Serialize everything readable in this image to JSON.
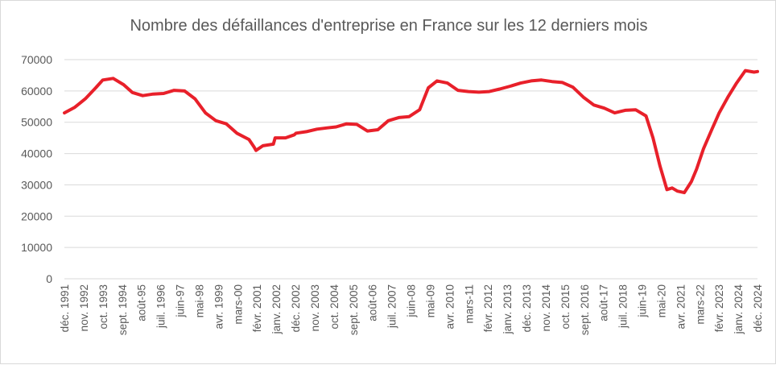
{
  "chart_data": {
    "type": "line",
    "title": "Nombre des défaillances d'entreprise en France  sur les 12 derniers mois",
    "xlabel": "",
    "ylabel": "",
    "ylim": [
      0,
      70000
    ],
    "yticks": [
      0,
      10000,
      20000,
      30000,
      40000,
      50000,
      60000,
      70000
    ],
    "ytick_labels": [
      "0",
      "10000",
      "20000",
      "30000",
      "40000",
      "50000",
      "60000",
      "70000"
    ],
    "grid": "horizontal",
    "line_color": "#e8202a",
    "x_tick_labels": [
      "déc. 1991",
      "nov. 1992",
      "oct. 1993",
      "sept. 1994",
      "août-95",
      "juil. 1996",
      "juin-97",
      "mai-98",
      "avr. 1999",
      "mars-00",
      "févr. 2001",
      "janv. 2002",
      "déc. 2002",
      "nov. 2003",
      "oct. 2004",
      "sept. 2005",
      "août-06",
      "juil. 2007",
      "juin-08",
      "mai-09",
      "avr. 2010",
      "mars-11",
      "févr. 2012",
      "janv. 2013",
      "déc. 2013",
      "nov. 2014",
      "oct. 2015",
      "sept. 2016",
      "août-17",
      "juil. 2018",
      "juin-19",
      "mai-20",
      "avr. 2021",
      "mars-22",
      "févr. 2023",
      "janv. 2024",
      "déc. 2024"
    ],
    "series": [
      {
        "x": [
          "1991-12",
          "1992-06",
          "1992-12",
          "1993-06",
          "1993-10",
          "1994-04",
          "1994-10",
          "1995-03",
          "1995-09",
          "1996-03",
          "1996-09",
          "1997-03",
          "1997-09",
          "1998-03",
          "1998-09",
          "1999-03",
          "1999-09",
          "2000-03",
          "2000-10",
          "2001-01",
          "2001-02",
          "2001-06",
          "2001-12",
          "2002-01",
          "2002-07",
          "2002-12",
          "2003-01",
          "2003-07",
          "2004-01",
          "2004-07",
          "2004-12",
          "2005-06",
          "2005-12",
          "2006-06",
          "2006-12",
          "2007-06",
          "2007-12",
          "2008-06",
          "2008-12",
          "2009-05",
          "2009-10",
          "2010-04",
          "2010-10",
          "2011-04",
          "2011-10",
          "2012-04",
          "2012-10",
          "2013-04",
          "2013-10",
          "2014-04",
          "2014-10",
          "2015-04",
          "2015-10",
          "2016-04",
          "2016-10",
          "2017-04",
          "2017-10",
          "2018-04",
          "2018-10",
          "2019-04",
          "2019-10",
          "2020-02",
          "2020-06",
          "2020-10",
          "2021-01",
          "2021-04",
          "2021-08",
          "2021-12",
          "2022-03",
          "2022-07",
          "2022-12",
          "2023-04",
          "2023-09",
          "2024-02",
          "2024-07",
          "2024-12",
          "2025-02"
        ],
        "values": [
          53000,
          54800,
          57500,
          61000,
          63500,
          64000,
          62000,
          59500,
          58500,
          59000,
          59200,
          60200,
          60000,
          57500,
          53000,
          50500,
          49500,
          46500,
          44500,
          42000,
          41000,
          42500,
          43000,
          45000,
          45000,
          46000,
          46500,
          47000,
          47800,
          48200,
          48500,
          49500,
          49300,
          47200,
          47600,
          50500,
          51500,
          51800,
          54000,
          61000,
          63200,
          62500,
          60200,
          59800,
          59600,
          59800,
          60600,
          61500,
          62500,
          63200,
          63500,
          63000,
          62700,
          61200,
          58000,
          55500,
          54500,
          53000,
          53800,
          54000,
          52000,
          45000,
          36000,
          28500,
          29000,
          28000,
          27500,
          31000,
          35000,
          41500,
          48000,
          53000,
          58000,
          62500,
          66500,
          66000,
          66200
        ]
      }
    ]
  }
}
